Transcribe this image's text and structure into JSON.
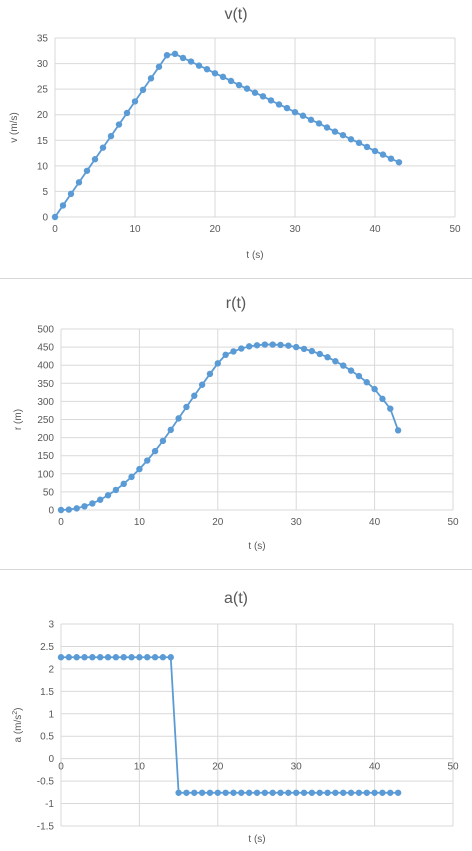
{
  "charts": {
    "colors": {
      "series": "#5b9bd5",
      "grid": "#d9d9d9",
      "text": "#595959",
      "divider": "#d9d9d9"
    }
  },
  "chart_data": [
    {
      "type": "scatter",
      "title": "v(t)",
      "xlabel": "t (s)",
      "ylabel": "v (m/s)",
      "ylabel_sup": "",
      "ylabel_tail": "",
      "xlim": [
        0,
        50
      ],
      "ylim": [
        0,
        35
      ],
      "xticks": [
        0,
        10,
        20,
        30,
        40,
        50
      ],
      "yticks": [
        0,
        5,
        10,
        15,
        20,
        25,
        30,
        35
      ],
      "grid": true,
      "lines": true,
      "markers": true,
      "series": [
        {
          "x": [
            0,
            1,
            2,
            3,
            4,
            5,
            6,
            7,
            8,
            9,
            10,
            11,
            12,
            13,
            14,
            15,
            16,
            17,
            18,
            19,
            20,
            21,
            22,
            23,
            24,
            25,
            26,
            27,
            28,
            29,
            30,
            31,
            32,
            33,
            34,
            35,
            36,
            37,
            38,
            39,
            40,
            41,
            42,
            43
          ],
          "y": [
            0,
            2.26,
            4.52,
            6.78,
            9.04,
            11.3,
            13.56,
            15.82,
            18.08,
            20.34,
            22.6,
            24.86,
            27.12,
            29.38,
            31.64,
            31.9,
            31.1,
            30.4,
            29.6,
            28.9,
            28.1,
            27.4,
            26.6,
            25.8,
            25.1,
            24.3,
            23.6,
            22.8,
            22.0,
            21.3,
            20.5,
            19.8,
            19.0,
            18.3,
            17.5,
            16.7,
            16.0,
            15.2,
            14.5,
            13.7,
            12.9,
            12.2,
            11.4,
            10.7
          ]
        }
      ]
    },
    {
      "type": "scatter",
      "title": "r(t)",
      "xlabel": "t (s)",
      "ylabel": "r (m)",
      "ylabel_sup": "",
      "ylabel_tail": "",
      "xlim": [
        0,
        50
      ],
      "ylim": [
        0,
        500
      ],
      "xticks": [
        0,
        10,
        20,
        30,
        40,
        50
      ],
      "yticks": [
        0,
        50,
        100,
        150,
        200,
        250,
        300,
        350,
        400,
        450,
        500
      ],
      "grid": true,
      "lines": true,
      "markers": true,
      "series": [
        {
          "x": [
            0,
            1,
            2,
            3,
            4,
            5,
            6,
            7,
            8,
            9,
            10,
            11,
            12,
            13,
            14,
            15,
            16,
            17,
            18,
            19,
            20,
            21,
            22,
            23,
            24,
            25,
            26,
            27,
            28,
            29,
            30,
            31,
            32,
            33,
            34,
            35,
            36,
            37,
            38,
            39,
            40,
            41,
            42,
            43
          ],
          "y": [
            0,
            1.1,
            4.5,
            10.2,
            18.1,
            28.3,
            40.7,
            55.4,
            72.3,
            91.5,
            113,
            136.7,
            162.7,
            190.9,
            221.4,
            253.1,
            284.6,
            315.6,
            346,
            375.9,
            405.1,
            428.7,
            438,
            446,
            452,
            455,
            457,
            457,
            456,
            454,
            450,
            445,
            439,
            431,
            422,
            411,
            399,
            385,
            370,
            353,
            334,
            307,
            280,
            220
          ]
        }
      ]
    },
    {
      "type": "scatter",
      "title": "a(t)",
      "xlabel": "t (s)",
      "ylabel": "a (m/s",
      "ylabel_sup": "2",
      "ylabel_tail": ")",
      "xlim": [
        0,
        50
      ],
      "ylim": [
        -1.5,
        3
      ],
      "xticks": [
        0,
        10,
        20,
        30,
        40,
        50
      ],
      "yticks": [
        -1.5,
        -1,
        -0.5,
        0,
        0.5,
        1,
        1.5,
        2,
        2.5,
        3
      ],
      "grid": true,
      "lines": true,
      "markers": true,
      "series": [
        {
          "x": [
            0,
            1,
            2,
            3,
            4,
            5,
            6,
            7,
            8,
            9,
            10,
            11,
            12,
            13,
            14,
            15,
            16,
            17,
            18,
            19,
            20,
            21,
            22,
            23,
            24,
            25,
            26,
            27,
            28,
            29,
            30,
            31,
            32,
            33,
            34,
            35,
            36,
            37,
            38,
            39,
            40,
            41,
            42,
            43
          ],
          "y": [
            2.26,
            2.26,
            2.26,
            2.26,
            2.26,
            2.26,
            2.26,
            2.26,
            2.26,
            2.26,
            2.26,
            2.26,
            2.26,
            2.26,
            2.26,
            -0.76,
            -0.76,
            -0.76,
            -0.76,
            -0.76,
            -0.76,
            -0.76,
            -0.76,
            -0.76,
            -0.76,
            -0.76,
            -0.76,
            -0.76,
            -0.76,
            -0.76,
            -0.76,
            -0.76,
            -0.76,
            -0.76,
            -0.76,
            -0.76,
            -0.76,
            -0.76,
            -0.76,
            -0.76,
            -0.76,
            -0.76,
            -0.76,
            -0.76
          ]
        }
      ]
    }
  ]
}
